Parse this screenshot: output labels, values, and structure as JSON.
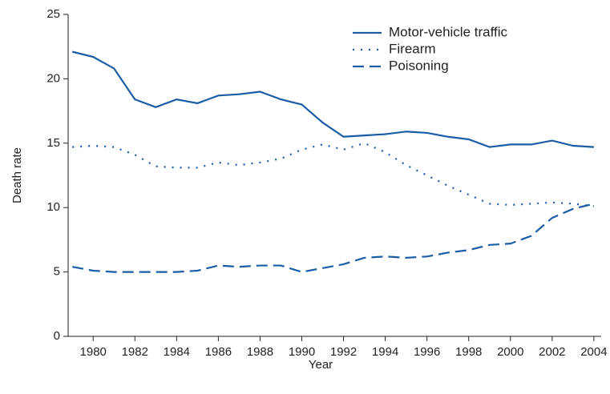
{
  "chart_data": {
    "type": "line",
    "x_label": "Year",
    "y_label": "Death rate",
    "x": [
      1979,
      1980,
      1981,
      1982,
      1983,
      1984,
      1985,
      1986,
      1987,
      1988,
      1989,
      1990,
      1991,
      1992,
      1993,
      1994,
      1995,
      1996,
      1997,
      1998,
      1999,
      2000,
      2001,
      2002,
      2003,
      2004
    ],
    "series": [
      {
        "name": "Motor-vehicle traffic",
        "color": "#1a5da6",
        "dash": "solid",
        "values": [
          22.1,
          21.7,
          20.8,
          18.4,
          17.8,
          18.4,
          18.1,
          18.7,
          18.8,
          19.0,
          18.4,
          18.0,
          16.6,
          15.5,
          15.6,
          15.7,
          15.9,
          15.8,
          15.5,
          15.3,
          14.7,
          14.9,
          14.9,
          15.2,
          14.8,
          14.7
        ]
      },
      {
        "name": "Firearm",
        "color": "#1a5da6",
        "dash": "dotted",
        "values": [
          14.7,
          14.8,
          14.7,
          14.1,
          13.2,
          13.1,
          13.1,
          13.5,
          13.3,
          13.5,
          13.8,
          14.5,
          14.9,
          14.5,
          15.0,
          14.3,
          13.3,
          12.5,
          11.7,
          11.0,
          10.3,
          10.2,
          10.3,
          10.4,
          10.3,
          10.1
        ]
      },
      {
        "name": "Poisoning",
        "color": "#1a5da6",
        "dash": "dashed",
        "values": [
          5.4,
          5.1,
          5.0,
          5.0,
          5.0,
          5.0,
          5.1,
          5.5,
          5.4,
          5.5,
          5.5,
          5.0,
          5.3,
          5.6,
          6.1,
          6.2,
          6.1,
          6.2,
          6.5,
          6.7,
          7.1,
          7.2,
          7.8,
          9.2,
          9.9,
          10.3
        ]
      }
    ],
    "xlim": [
      1978.8,
      2004.35
    ],
    "xticks": [
      1980,
      1982,
      1984,
      1986,
      1988,
      1990,
      1992,
      1994,
      1996,
      1998,
      2000,
      2002,
      2004
    ],
    "ylim": [
      0,
      25
    ],
    "yticks": [
      0,
      5,
      10,
      15,
      20,
      25
    ],
    "grid": false,
    "legend_position": "upper-right"
  }
}
